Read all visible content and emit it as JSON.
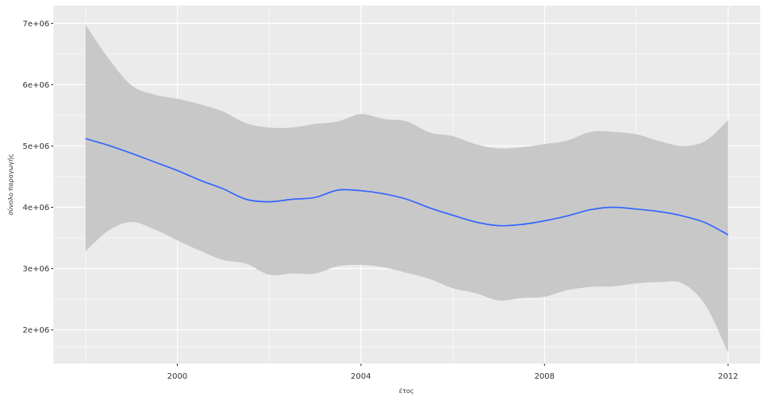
{
  "chart_data": {
    "type": "line",
    "title": "",
    "xlabel": "έτος",
    "ylabel": "σύνολο παραγωγής",
    "xlim": [
      1997.3,
      2012.7
    ],
    "ylim": [
      1450000,
      7290000
    ],
    "x_ticks": [
      2000,
      2004,
      2008,
      2012
    ],
    "x_tick_labels": [
      "2000",
      "2004",
      "2008",
      "2012"
    ],
    "y_ticks": [
      2000000,
      3000000,
      4000000,
      5000000,
      6000000,
      7000000
    ],
    "y_tick_labels": [
      "2e+06",
      "3e+06",
      "4e+06",
      "5e+06",
      "6e+06",
      "7e+06"
    ],
    "grid": true,
    "legend": "none",
    "colors": {
      "panel": "#ebebeb",
      "grid": "#ffffff",
      "line": "#3366ff",
      "ribbon": "#c8c8c8"
    },
    "series": [
      {
        "x": [
          1998,
          1998.5,
          1999,
          1999.5,
          2000,
          2000.5,
          2001,
          2001.5,
          2002,
          2002.5,
          2003,
          2003.5,
          2004,
          2004.5,
          2005,
          2005.5,
          2006,
          2006.5,
          2007,
          2007.5,
          2008,
          2008.5,
          2009,
          2009.5,
          2010,
          2010.5,
          2011,
          2011.5,
          2012
        ],
        "y": [
          5120000,
          5010000,
          4880000,
          4740000,
          4600000,
          4440000,
          4300000,
          4130000,
          4090000,
          4130000,
          4160000,
          4280000,
          4270000,
          4220000,
          4130000,
          3990000,
          3870000,
          3760000,
          3700000,
          3720000,
          3780000,
          3860000,
          3960000,
          4000000,
          3970000,
          3930000,
          3860000,
          3750000,
          3550000
        ],
        "ymin": [
          3280000,
          3620000,
          3760000,
          3640000,
          3460000,
          3290000,
          3140000,
          3080000,
          2900000,
          2920000,
          2920000,
          3040000,
          3060000,
          3020000,
          2930000,
          2830000,
          2680000,
          2600000,
          2480000,
          2520000,
          2540000,
          2650000,
          2700000,
          2710000,
          2760000,
          2780000,
          2760000,
          2410000,
          1630000
        ],
        "ymax": [
          6980000,
          6430000,
          5990000,
          5840000,
          5770000,
          5680000,
          5560000,
          5370000,
          5300000,
          5300000,
          5360000,
          5400000,
          5520000,
          5440000,
          5400000,
          5220000,
          5160000,
          5030000,
          4960000,
          4980000,
          5030000,
          5090000,
          5230000,
          5230000,
          5190000,
          5080000,
          5000000,
          5080000,
          5420000
        ]
      }
    ]
  }
}
